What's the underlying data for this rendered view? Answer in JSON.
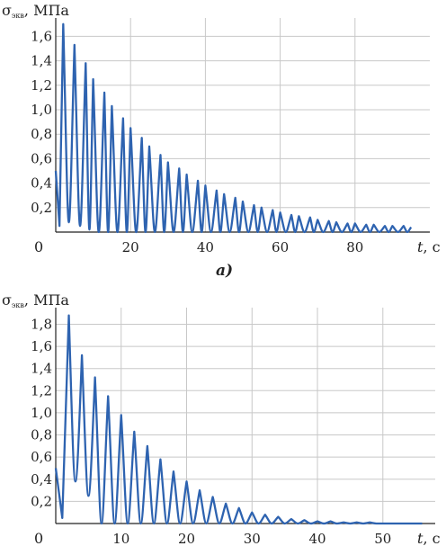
{
  "charts": [
    {
      "id": "a",
      "ylabel_symbol": "σ",
      "ylabel_sub": "экв",
      "ylabel_unit": ", МПа",
      "xlabel_var": "t",
      "xlabel_unit": ", с",
      "caption": "a)",
      "origin_label": "0",
      "x_ticks": [
        "20",
        "40",
        "60",
        "80"
      ],
      "y_ticks": [
        "0,2",
        "0,4",
        "0,6",
        "0,8",
        "1,0",
        "1,2",
        "1,4",
        "1,6"
      ]
    },
    {
      "id": "b",
      "ylabel_symbol": "σ",
      "ylabel_sub": "экв",
      "ylabel_unit": ", МПа",
      "xlabel_var": "t",
      "xlabel_unit": ", с",
      "origin_label": "0",
      "x_ticks": [
        "10",
        "20",
        "30",
        "40",
        "50"
      ],
      "y_ticks": [
        "0,2",
        "0,4",
        "0,6",
        "0,8",
        "1,0",
        "1,2",
        "1,4",
        "1,6",
        "1,8"
      ]
    }
  ],
  "chart_data": [
    {
      "type": "line",
      "series_color": "#2e63b0",
      "grid": true,
      "xlim": [
        0,
        100
      ],
      "ylim": [
        0,
        1.75
      ],
      "x_tick_values": [
        20,
        40,
        60,
        80
      ],
      "y_tick_values": [
        0.2,
        0.4,
        0.6,
        0.8,
        1.0,
        1.2,
        1.4,
        1.6
      ],
      "series": [
        {
          "envelope_peaks": {
            "x": [
              2,
              5,
              8,
              10,
              13,
              15,
              18,
              20,
              23,
              25,
              28,
              30,
              33,
              35,
              38,
              40,
              43,
              45,
              48,
              50,
              53,
              55,
              58,
              60,
              63,
              65,
              68,
              70,
              73,
              75,
              78,
              80,
              83,
              85,
              88,
              90,
              93,
              95
            ],
            "y": [
              1.7,
              1.53,
              1.38,
              1.25,
              1.14,
              1.03,
              0.93,
              0.85,
              0.77,
              0.7,
              0.63,
              0.57,
              0.52,
              0.47,
              0.42,
              0.38,
              0.34,
              0.31,
              0.28,
              0.25,
              0.22,
              0.2,
              0.18,
              0.16,
              0.14,
              0.13,
              0.12,
              0.1,
              0.09,
              0.08,
              0.07,
              0.07,
              0.06,
              0.06,
              0.05,
              0.05,
              0.05,
              0.04
            ]
          },
          "troughs": {
            "x": [
              3.2,
              6.4,
              9.6,
              12.8
            ],
            "y": [
              0.08,
              0.05,
              0.02,
              0
            ]
          }
        }
      ]
    },
    {
      "type": "line",
      "series_color": "#2e63b0",
      "grid": true,
      "xlim": [
        0,
        58
      ],
      "ylim": [
        0,
        1.95
      ],
      "x_tick_values": [
        10,
        20,
        30,
        40,
        50
      ],
      "y_tick_values": [
        0.2,
        0.4,
        0.6,
        0.8,
        1.0,
        1.2,
        1.4,
        1.6,
        1.8
      ],
      "series": [
        {
          "envelope_peaks": {
            "x": [
              2,
              4,
              6,
              8,
              10,
              12,
              14,
              16,
              18,
              20,
              22,
              24,
              26,
              28,
              30,
              32,
              34,
              36,
              38,
              40,
              42,
              44,
              46,
              48,
              50,
              52,
              54,
              56
            ],
            "y": [
              1.88,
              1.52,
              1.32,
              1.15,
              0.98,
              0.83,
              0.7,
              0.58,
              0.47,
              0.38,
              0.3,
              0.24,
              0.18,
              0.14,
              0.1,
              0.08,
              0.06,
              0.04,
              0.03,
              0.02,
              0.02,
              0.01,
              0.01,
              0.01,
              0,
              0,
              0,
              0
            ]
          },
          "troughs": {
            "x": [
              3,
              5,
              7
            ],
            "y": [
              0.38,
              0.25,
              0
            ]
          }
        }
      ]
    }
  ]
}
